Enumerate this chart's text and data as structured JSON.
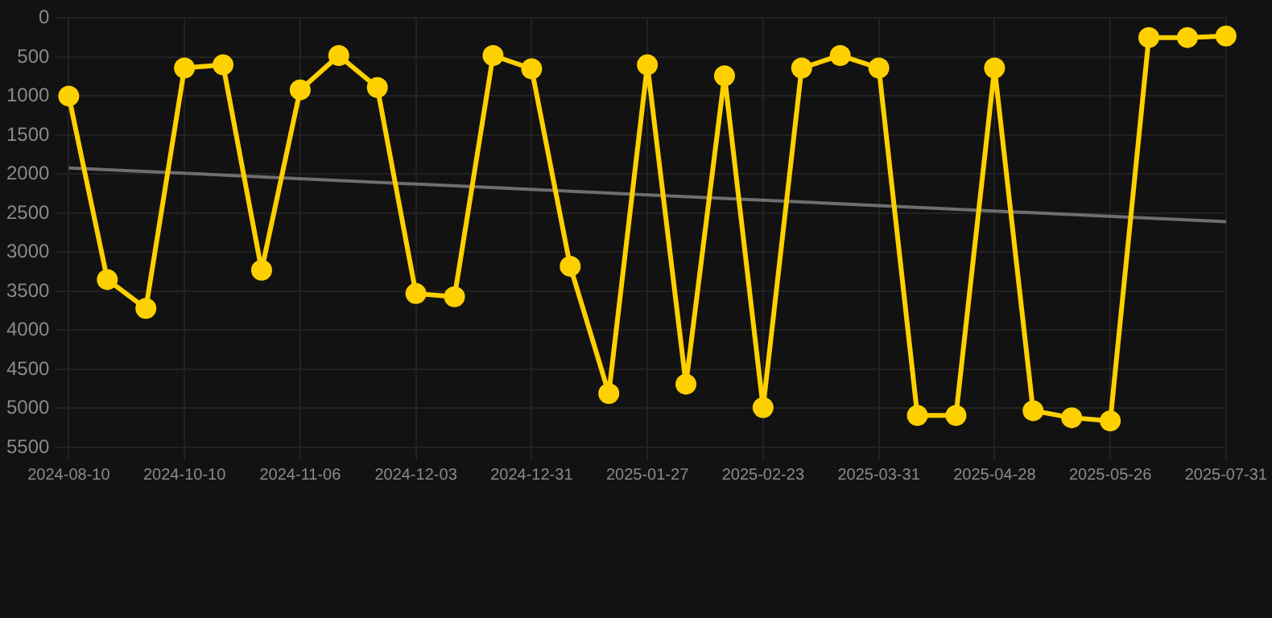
{
  "chart_data": {
    "type": "line",
    "categories": [
      "2024-08-10",
      null,
      null,
      "2024-10-10",
      null,
      null,
      "2024-11-06",
      null,
      null,
      "2024-12-03",
      null,
      null,
      "2024-12-31",
      null,
      null,
      "2025-01-27",
      null,
      null,
      "2025-02-23",
      null,
      null,
      "2025-03-31",
      null,
      null,
      "2025-04-28",
      null,
      null,
      "2025-05-26",
      null,
      null,
      "2025-07-31"
    ],
    "series": [
      {
        "type": "line",
        "color": "#ffd000",
        "marker": "circle",
        "values": [
          1000,
          3350,
          3720,
          640,
          600,
          3230,
          920,
          480,
          890,
          3530,
          3570,
          480,
          650,
          3180,
          4810,
          600,
          4690,
          740,
          4990,
          640,
          480,
          640,
          5090,
          5090,
          640,
          5030,
          5120,
          5160,
          250,
          250,
          230
        ]
      },
      {
        "type": "line",
        "color": "#6e6e6e",
        "marker": "none",
        "values": [
          1920,
          null,
          null,
          null,
          null,
          null,
          null,
          null,
          null,
          null,
          null,
          null,
          null,
          null,
          null,
          null,
          null,
          null,
          null,
          null,
          null,
          null,
          null,
          null,
          null,
          null,
          null,
          null,
          null,
          null,
          2610
        ]
      }
    ],
    "ylim": [
      5500,
      0
    ],
    "yticks": [
      0,
      500,
      1000,
      1500,
      2000,
      2500,
      3000,
      3500,
      4000,
      4500,
      5000,
      5500
    ],
    "grid": true,
    "legend": false
  }
}
